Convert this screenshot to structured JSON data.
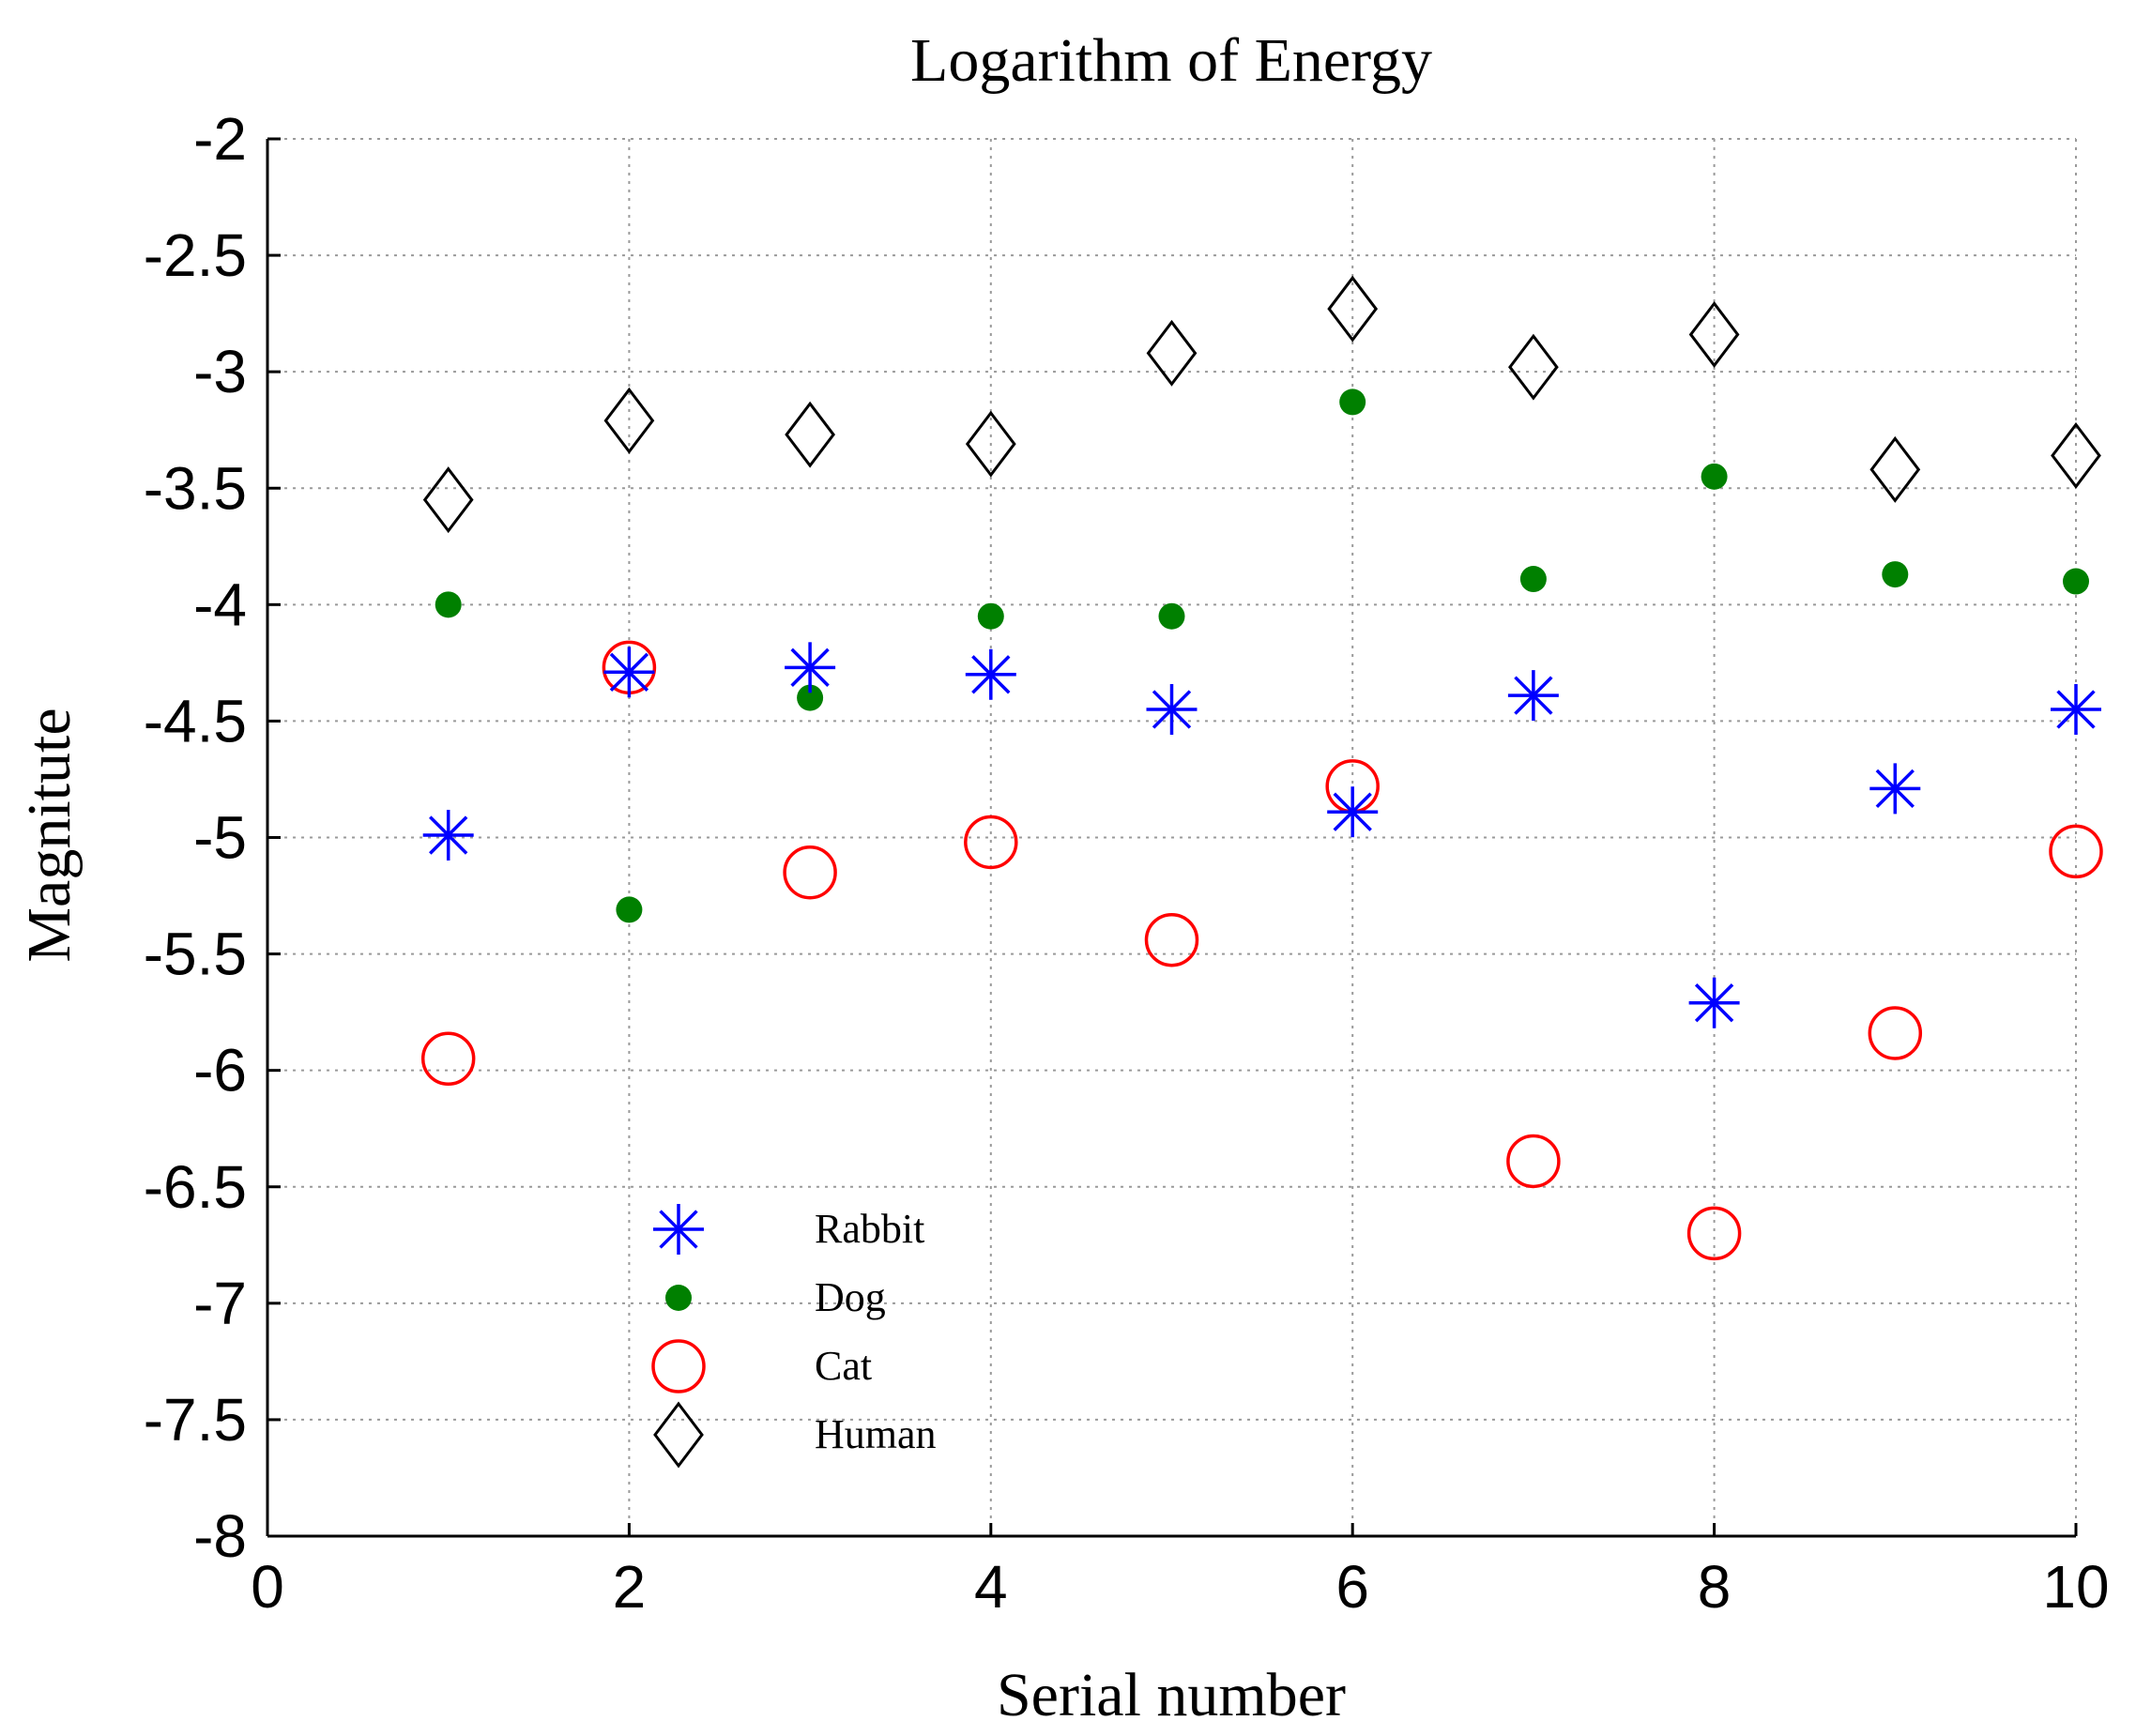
{
  "chart_data": {
    "type": "scatter",
    "title": "Logarithm of Energy",
    "xlabel": "Serial number",
    "ylabel": "Magnitute",
    "xlim": [
      0,
      10
    ],
    "ylim": [
      -8,
      -2
    ],
    "xticks": [
      0,
      2,
      4,
      6,
      8,
      10
    ],
    "xtick_labels": [
      "0",
      "2",
      "4",
      "6",
      "8",
      "10"
    ],
    "yticks": [
      -2,
      -2.5,
      -3,
      -3.5,
      -4,
      -4.5,
      -5,
      -5.5,
      -6,
      -6.5,
      -7,
      -7.5,
      -8
    ],
    "ytick_labels": [
      "-2",
      "-2.5",
      "-3",
      "-3.5",
      "-4",
      "-4.5",
      "-5",
      "-5.5",
      "-6",
      "-6.5",
      "-7",
      "-7.5",
      "-8"
    ],
    "grid": true,
    "legend_position": "lower-center",
    "series": [
      {
        "name": "Rabbit",
        "marker": "asterisk",
        "color": "#0000ff",
        "x": [
          1,
          2,
          3,
          4,
          5,
          6,
          7,
          8,
          9,
          10
        ],
        "values": [
          -4.99,
          -4.29,
          -4.27,
          -4.3,
          -4.45,
          -4.89,
          -4.39,
          -5.71,
          -4.79,
          -4.45
        ]
      },
      {
        "name": "Dog",
        "marker": "dot",
        "color": "#008000",
        "x": [
          1,
          2,
          3,
          4,
          5,
          6,
          7,
          8,
          9,
          10
        ],
        "values": [
          -4.0,
          -5.31,
          -4.4,
          -4.05,
          -4.05,
          -3.13,
          -3.89,
          -3.45,
          -3.87,
          -3.9
        ]
      },
      {
        "name": "Cat",
        "marker": "circle",
        "color": "#ff0000",
        "x": [
          1,
          2,
          3,
          4,
          5,
          6,
          7,
          8,
          9,
          10
        ],
        "values": [
          -5.95,
          -4.27,
          -5.15,
          -5.02,
          -5.44,
          -4.78,
          -6.39,
          -6.7,
          -5.84,
          -5.06
        ]
      },
      {
        "name": "Human",
        "marker": "diamond",
        "color": "#000000",
        "x": [
          1,
          2,
          3,
          4,
          5,
          6,
          7,
          8,
          9,
          10
        ],
        "values": [
          -3.55,
          -3.21,
          -3.27,
          -3.31,
          -2.92,
          -2.73,
          -2.98,
          -2.84,
          -3.42,
          -3.36
        ]
      }
    ]
  }
}
